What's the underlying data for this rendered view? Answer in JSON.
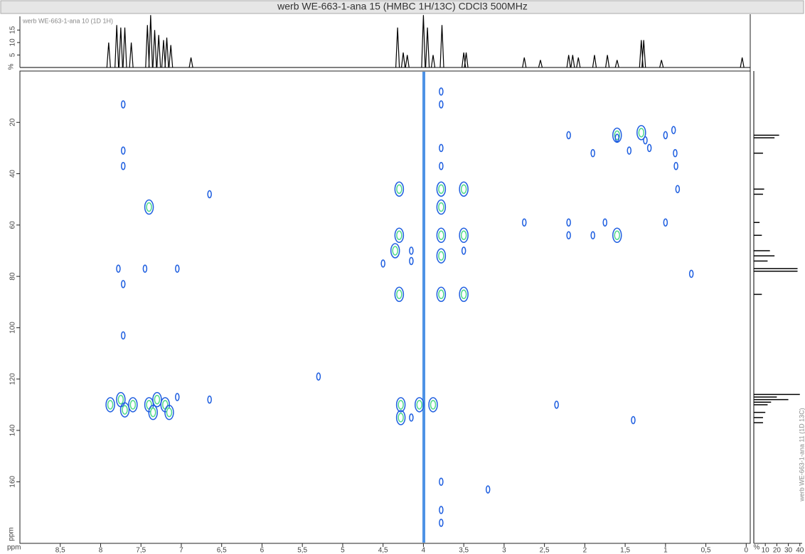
{
  "chart_data": [
    {
      "type": "contour",
      "title": "werb WE-663-1-ana 15 (HMBC 1H/13C) CDCl3 500MHz",
      "x_label": "ppm",
      "y_label": "ppm",
      "xlim": [
        9.0,
        -0.05
      ],
      "ylim": [
        0,
        184
      ],
      "xticks": [
        {
          "value": 8.5,
          "label": "8,5"
        },
        8,
        {
          "value": 7.5,
          "label": "7,5"
        },
        7,
        {
          "value": 6.5,
          "label": "6,5"
        },
        6,
        {
          "value": 5.5,
          "label": "5,5"
        },
        5,
        {
          "value": 4.5,
          "label": "4,5"
        },
        4,
        {
          "value": 3.5,
          "label": "3,5"
        },
        3,
        {
          "value": 2.5,
          "label": "2,5"
        },
        2,
        {
          "value": 1.5,
          "label": "1,5"
        },
        1,
        {
          "value": 0.5,
          "label": "0,5"
        },
        0
      ],
      "yticks": [
        20,
        40,
        60,
        80,
        100,
        120,
        140,
        160
      ],
      "color": "#1f5fe0",
      "inner_color": "#4fd98a",
      "x": [
        7.88,
        7.75,
        7.7,
        7.6,
        7.4,
        7.35,
        7.3,
        7.2,
        7.15,
        7.05,
        6.65,
        7.4,
        7.72,
        7.72,
        7.72,
        7.72,
        7.72,
        7.78,
        7.45,
        7.05,
        5.3,
        6.65,
        4.3,
        4.5,
        4.35,
        4.3,
        4.3,
        4.15,
        4.15,
        4.28,
        4.28,
        4.15,
        4.05,
        3.88,
        3.78,
        3.78,
        3.78,
        3.78,
        3.78,
        3.78,
        3.5,
        3.5,
        3.5,
        3.5,
        3.78,
        3.78,
        3.78,
        2.75,
        2.2,
        2.2,
        2.2,
        1.9,
        1.9,
        1.75,
        1.6,
        1.6,
        1.6,
        1.45,
        1.3,
        1.25,
        1.2,
        1.0,
        1.0,
        0.9,
        0.88,
        0.87,
        0.85,
        0.68,
        2.35,
        1.4,
        3.2,
        3.78,
        3.78,
        3.78
      ],
      "values": [
        130,
        128,
        132,
        130,
        130,
        133,
        128,
        130,
        133,
        127,
        128,
        53,
        13,
        31,
        37,
        103,
        83,
        77,
        77,
        77,
        119,
        48,
        46,
        75,
        70,
        64,
        87,
        70,
        74,
        130,
        135,
        135,
        130,
        130,
        46,
        53,
        64,
        72,
        87,
        37,
        46,
        64,
        70,
        87,
        8,
        13,
        30,
        59,
        59,
        64,
        25,
        64,
        32,
        59,
        64,
        25,
        26,
        31,
        24,
        27,
        30,
        25,
        59,
        23,
        32,
        37,
        46,
        79,
        130,
        136,
        163,
        160,
        171,
        176
      ],
      "strong": [
        1,
        1,
        1,
        1,
        1,
        1,
        1,
        1,
        1,
        0,
        0,
        1,
        0,
        0,
        0,
        0,
        0,
        0,
        0,
        0,
        0,
        0,
        1,
        0,
        1,
        1,
        1,
        0,
        0,
        1,
        1,
        0,
        1,
        1,
        1,
        1,
        1,
        1,
        1,
        0,
        1,
        1,
        0,
        1,
        0,
        0,
        0,
        0,
        0,
        0,
        0,
        0,
        0,
        0,
        1,
        1,
        0,
        0,
        1,
        0,
        0,
        0,
        0,
        0,
        0,
        0,
        0,
        0,
        0,
        0,
        0,
        0,
        0,
        0
      ]
    },
    {
      "type": "stem",
      "label": "werb WE-663-1-ana 10 (1D 1H)",
      "y_label": "%",
      "ylim": [
        0,
        20.5
      ],
      "yticks": [
        5,
        10,
        15
      ],
      "color": "#000000",
      "x": [
        7.9,
        7.8,
        7.75,
        7.7,
        7.62,
        7.42,
        7.38,
        7.33,
        7.28,
        7.22,
        7.18,
        7.13,
        6.88,
        4.32,
        4.25,
        4.2,
        4.0,
        3.95,
        3.88,
        3.77,
        3.5,
        3.47,
        2.75,
        2.55,
        2.2,
        2.15,
        2.08,
        1.88,
        1.72,
        1.6,
        1.3,
        1.27,
        1.05,
        0.05
      ],
      "values": [
        10,
        17,
        16,
        16,
        10,
        17,
        21,
        15,
        13,
        11,
        12,
        9,
        4,
        16,
        6,
        5,
        21,
        16,
        5,
        17,
        6,
        6,
        4,
        3,
        5,
        5,
        4,
        5,
        5,
        3,
        11,
        11,
        3,
        4
      ]
    },
    {
      "type": "stem-vertical",
      "label": "werb WE-663-1-ana 11 (1D 13C)",
      "y_label": "%",
      "ylim": [
        0,
        42
      ],
      "yticks": [
        10,
        20,
        30,
        40
      ],
      "color": "#000000",
      "x": [
        25,
        26,
        32,
        46,
        48,
        59,
        64,
        70,
        72,
        74,
        77,
        78,
        87,
        126,
        127,
        128,
        129,
        130,
        133,
        135,
        137
      ],
      "values": [
        22,
        18,
        8,
        9,
        8,
        5,
        7,
        14,
        18,
        12,
        38,
        38,
        7,
        40,
        20,
        30,
        15,
        12,
        10,
        8,
        8
      ]
    }
  ]
}
